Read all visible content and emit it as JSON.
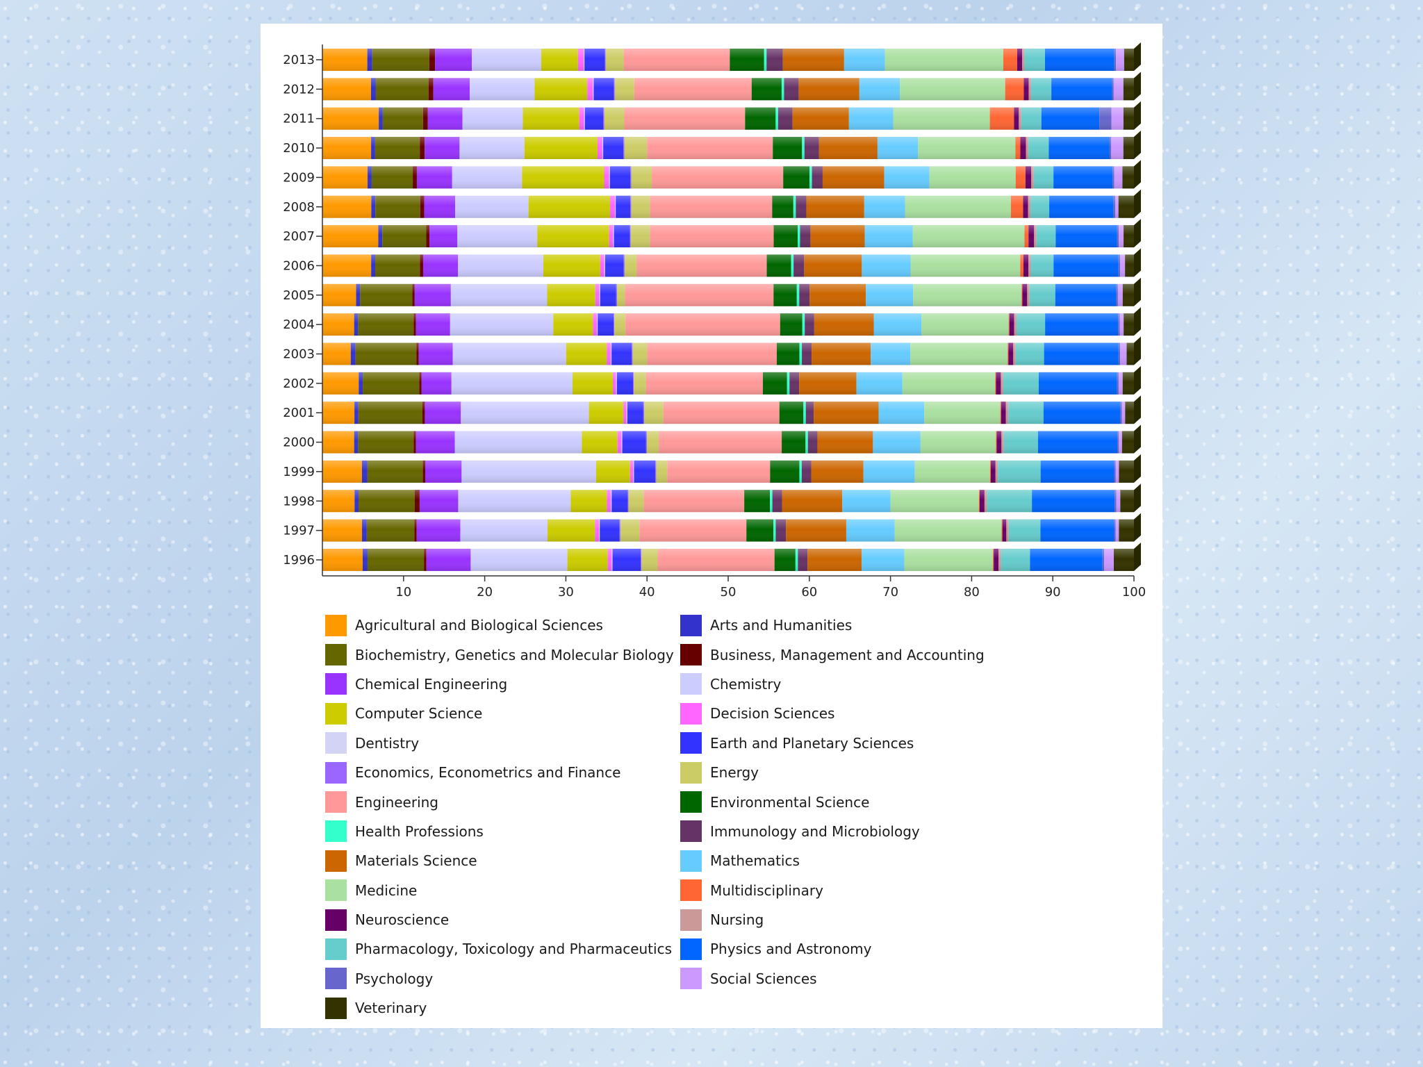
{
  "chart_data": {
    "type": "bar",
    "orientation": "horizontal",
    "stacked": true,
    "normalized_percent": true,
    "title": "",
    "xlabel": "",
    "ylabel": "",
    "xlim": [
      0,
      100
    ],
    "x_ticks": [
      10,
      20,
      30,
      40,
      50,
      60,
      70,
      80,
      90,
      100
    ],
    "legend_position": "bottom",
    "categories": [
      "2013",
      "2012",
      "2011",
      "2010",
      "2009",
      "2008",
      "2007",
      "2006",
      "2005",
      "2004",
      "2003",
      "2002",
      "2001",
      "2000",
      "1999",
      "1998",
      "1997",
      "1996"
    ],
    "series": [
      {
        "name": "Agricultural and Biological Sciences",
        "color": "#ff9900",
        "values": [
          5.5,
          6,
          7,
          6,
          5.5,
          6,
          7,
          6,
          4.2,
          4,
          3.5,
          4.5,
          4,
          4,
          5,
          4,
          5,
          5
        ]
      },
      {
        "name": "Arts and Humanities",
        "color": "#3333cc",
        "values": [
          0.6,
          0.6,
          0.5,
          0.5,
          0.5,
          0.5,
          0.5,
          0.5,
          0.5,
          0.5,
          0.6,
          0.5,
          0.5,
          0.5,
          0.7,
          0.5,
          0.6,
          0.6
        ]
      },
      {
        "name": "Biochemistry, Genetics and Molecular Biology",
        "color": "#666600",
        "values": [
          7,
          6.5,
          5,
          5.5,
          5,
          5.5,
          5.5,
          5.5,
          6.5,
          7,
          7.5,
          7,
          8,
          7,
          7,
          7,
          6,
          7
        ]
      },
      {
        "name": "Business, Management and Accounting",
        "color": "#660000",
        "values": [
          0.7,
          0.6,
          0.6,
          0.6,
          0.5,
          0.5,
          0.4,
          0.4,
          0.3,
          0.3,
          0.3,
          0.3,
          0.3,
          0.3,
          0.3,
          0.6,
          0.3,
          0.3
        ]
      },
      {
        "name": "Chemical Engineering",
        "color": "#9933ff",
        "values": [
          4.5,
          4.5,
          4.3,
          4.3,
          4.3,
          3.8,
          3.5,
          4.3,
          4.5,
          4.3,
          4.2,
          3.7,
          4.5,
          4.9,
          4.6,
          4.8,
          5.5,
          5.5
        ]
      },
      {
        "name": "Chemistry",
        "color": "#ccccff",
        "values": [
          8.5,
          8,
          7.5,
          8,
          8.5,
          9,
          10,
          10.5,
          12,
          13,
          14,
          15,
          16,
          16,
          17,
          14,
          11,
          12
        ]
      },
      {
        "name": "Computer Science",
        "color": "#cccc00",
        "values": [
          4.5,
          6.5,
          7,
          9,
          10,
          10,
          9,
          7,
          6,
          5,
          5,
          5,
          4.3,
          4.5,
          4.3,
          4.5,
          6,
          5
        ]
      },
      {
        "name": "Decision Sciences",
        "color": "#ff66ff",
        "values": [
          0.7,
          0.7,
          0.6,
          0.6,
          0.6,
          0.6,
          0.5,
          0.5,
          0.5,
          0.5,
          0.5,
          0.4,
          0.4,
          0.5,
          0.4,
          0.5,
          0.5,
          0.5
        ]
      },
      {
        "name": "Dentistry",
        "color": "#d3d3f5",
        "values": [
          0.1,
          0.1,
          0.1,
          0.1,
          0.1,
          0.1,
          0.1,
          0.1,
          0.1,
          0.1,
          0.1,
          0.1,
          0.1,
          0.1,
          0.1,
          0.1,
          0.1,
          0.1
        ]
      },
      {
        "name": "Earth and Planetary Sciences",
        "color": "#3333ff",
        "values": [
          2.5,
          2.5,
          2.3,
          2.5,
          2.5,
          1.8,
          2,
          2.3,
          2,
          2,
          2.5,
          2,
          2,
          3,
          2.7,
          2,
          2.5,
          3.5
        ]
      },
      {
        "name": "Economics, Econometrics and Finance",
        "color": "#9966ff",
        "values": [
          0.1,
          0.1,
          0.1,
          0.1,
          0.1,
          0.1,
          0.1,
          0.1,
          0.1,
          0.1,
          0.1,
          0.1,
          0.1,
          0.1,
          0.1,
          0.1,
          0.1,
          0.1
        ]
      },
      {
        "name": "Energy",
        "color": "#cccc66",
        "values": [
          2.2,
          2.4,
          2.5,
          2.8,
          2.5,
          2.3,
          2.4,
          1.5,
          1,
          1.4,
          1.8,
          1.5,
          2.4,
          1.5,
          1.4,
          1.9,
          2.4,
          2
        ]
      },
      {
        "name": "Engineering",
        "color": "#ff9999",
        "values": [
          13,
          14.5,
          15,
          15.5,
          16,
          15,
          15.5,
          16,
          18.5,
          19.5,
          16,
          14.5,
          14.5,
          15.5,
          13,
          12.5,
          13.5,
          14.5
        ]
      },
      {
        "name": "Environmental Science",
        "color": "#006600",
        "values": [
          4.2,
          3.7,
          3.8,
          3.6,
          3.2,
          2.6,
          3,
          3,
          2.9,
          2.8,
          2.8,
          3,
          3,
          3,
          3.7,
          3.2,
          3.4,
          2.6
        ]
      },
      {
        "name": "Health Professions",
        "color": "#33ffcc",
        "values": [
          0.3,
          0.3,
          0.3,
          0.3,
          0.3,
          0.3,
          0.3,
          0.3,
          0.3,
          0.3,
          0.3,
          0.3,
          0.3,
          0.3,
          0.3,
          0.3,
          0.3,
          0.3
        ]
      },
      {
        "name": "Immunology and Microbiology",
        "color": "#663366",
        "values": [
          2,
          1.8,
          1.8,
          1.8,
          1.3,
          1.3,
          1.3,
          1.3,
          1.3,
          1.2,
          1.2,
          1.2,
          1,
          1.2,
          1.2,
          1.2,
          1.3,
          1.2
        ]
      },
      {
        "name": "Materials Science",
        "color": "#cc6600",
        "values": [
          7.5,
          7.5,
          7,
          7.2,
          7.5,
          7.1,
          6.8,
          7.1,
          7,
          7.5,
          7.3,
          7.1,
          8.1,
          7,
          6.6,
          7.5,
          7.6,
          6.7
        ]
      },
      {
        "name": "Mathematics",
        "color": "#66ccff",
        "values": [
          5,
          5,
          5.5,
          5,
          5.5,
          5,
          6,
          6,
          5.9,
          6,
          4.9,
          5.7,
          5.7,
          6,
          6.5,
          6,
          6.1,
          5.3
        ]
      },
      {
        "name": "Medicine",
        "color": "#aae0a0",
        "values": [
          14.5,
          13,
          12,
          12,
          10.5,
          13,
          14,
          13.5,
          13.5,
          11,
          12,
          11.5,
          9.5,
          9.5,
          9.5,
          11,
          13.5,
          11
        ]
      },
      {
        "name": "Multidisciplinary",
        "color": "#ff6633",
        "values": [
          1.7,
          2.3,
          3,
          0.6,
          1.2,
          1.5,
          0.5,
          0.4,
          0.1,
          0.1,
          0.1,
          0.1,
          0.1,
          0.1,
          0.1,
          0.1,
          0.1,
          0.1
        ]
      },
      {
        "name": "Neuroscience",
        "color": "#660066",
        "values": [
          0.6,
          0.6,
          0.6,
          0.7,
          0.7,
          0.6,
          0.7,
          0.6,
          0.6,
          0.6,
          0.6,
          0.6,
          0.6,
          0.6,
          0.6,
          0.6,
          0.5,
          0.6
        ]
      },
      {
        "name": "Nursing",
        "color": "#cc9999",
        "values": [
          0.3,
          0.3,
          0.3,
          0.3,
          0.3,
          0.3,
          0.3,
          0.3,
          0.3,
          0.3,
          0.3,
          0.3,
          0.3,
          0.3,
          0.3,
          0.3,
          0.3,
          0.3
        ]
      },
      {
        "name": "Pharmacology, Toxicology and Pharmaceutics",
        "color": "#66cccc",
        "values": [
          2.5,
          2.5,
          2.5,
          2.5,
          2.4,
          2.3,
          2.4,
          2.8,
          3.2,
          3.6,
          3.5,
          4.4,
          4.4,
          4.3,
          5.4,
          5.6,
          4,
          3.6
        ]
      },
      {
        "name": "Physics and Astronomy",
        "color": "#0066ff",
        "values": [
          8.5,
          7.5,
          7.2,
          7.5,
          7.2,
          7.9,
          7.7,
          8,
          7.6,
          9.2,
          9.2,
          9.7,
          9.6,
          10,
          9.3,
          10.3,
          9.3,
          9
        ]
      },
      {
        "name": "Psychology",
        "color": "#6666cc",
        "values": [
          0.2,
          0.2,
          1.5,
          0.2,
          0.2,
          0.2,
          0.2,
          0.2,
          0.2,
          0.2,
          0.2,
          0.2,
          0.2,
          0.2,
          0.2,
          0.2,
          0.2,
          0.2
        ]
      },
      {
        "name": "Social Sciences",
        "color": "#cc99ff",
        "values": [
          1,
          1.2,
          1.5,
          1.5,
          1,
          0.4,
          0.6,
          0.6,
          0.6,
          0.5,
          0.8,
          0.5,
          0.4,
          0.4,
          0.4,
          0.5,
          0.4,
          1.2
        ]
      },
      {
        "name": "Veterinary",
        "color": "#333300",
        "values": [
          1.2,
          1.3,
          1.3,
          1.3,
          1.4,
          1.9,
          1.3,
          1.1,
          1.4,
          1.3,
          0.9,
          1.4,
          1.1,
          1.5,
          1.9,
          1.7,
          1.9,
          2.5
        ]
      }
    ]
  }
}
